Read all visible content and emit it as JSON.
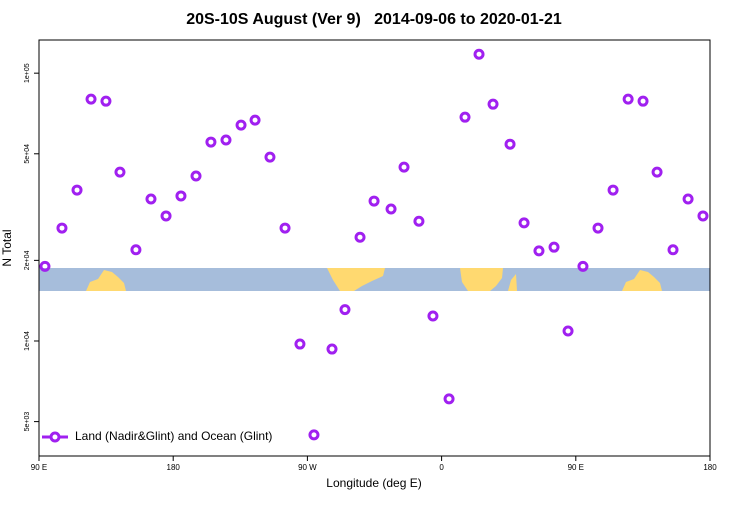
{
  "chart_data": {
    "type": "scatter",
    "title": "20S-10S August (Ver 9)   2014-09-06 to 2020-01-21",
    "x_label": "Longitude (deg E)",
    "y_label": "N Total",
    "log_y": true,
    "grid": false,
    "legend_position": "bottom-left",
    "xlim": [
      90,
      540
    ],
    "xticks": [
      {
        "value": 90,
        "label": "90 E"
      },
      {
        "value": 180,
        "label": "180"
      },
      {
        "value": 270,
        "label": "90 W"
      },
      {
        "value": 360,
        "label": "0"
      },
      {
        "value": 450,
        "label": "90 E"
      },
      {
        "value": 540,
        "label": "180"
      }
    ],
    "ylim": [
      3720,
      133000
    ],
    "yticks": [
      {
        "value": 5000,
        "label": "5e+03"
      },
      {
        "value": 10000,
        "label": "1e+04"
      },
      {
        "value": 20000,
        "label": "2e+04"
      },
      {
        "value": 50000,
        "label": "5e+04"
      },
      {
        "value": 100000,
        "label": "1e+05"
      }
    ],
    "series": [
      {
        "name": "Land (Nadir&Glint) and Ocean (Glint)",
        "color": "#a020f0",
        "x": [
          94,
          105.4,
          115.5,
          124.9,
          134.9,
          144.3,
          155,
          165.1,
          175.2,
          185.2,
          195.3,
          205.3,
          215.4,
          225.5,
          234.9,
          244.9,
          255,
          265,
          274.4,
          286.5,
          295.2,
          305.3,
          314.7,
          326.1,
          334.8,
          344.8,
          354.2,
          365,
          375.7,
          385.1,
          394.5,
          405.9,
          415.3,
          425.3,
          435.4,
          444.8,
          454.8,
          464.9,
          475,
          485.1,
          495.1,
          504.5,
          515.2,
          525.3,
          535.3
        ],
        "values": [
          19000,
          26400,
          36600,
          80000,
          78600,
          42700,
          21900,
          33900,
          29300,
          34800,
          41300,
          55300,
          56300,
          64000,
          66800,
          48600,
          26400,
          9740,
          4460,
          9330,
          13100,
          24400,
          33300,
          31100,
          44600,
          28000,
          12400,
          6080,
          68500,
          117700,
          76600,
          54300,
          27600,
          21700,
          22400,
          10900,
          19000,
          26400,
          36600,
          80000,
          78600,
          42700,
          21900,
          33900,
          29300
        ]
      }
    ]
  }
}
